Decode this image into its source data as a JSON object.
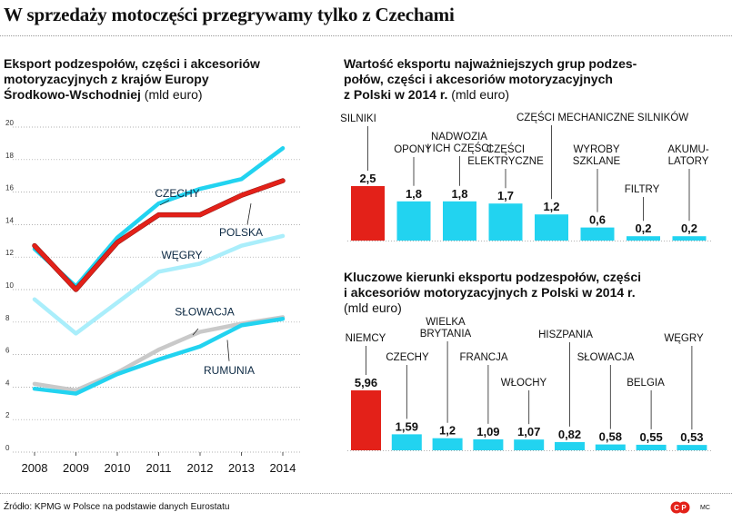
{
  "title": "W sprzedaży motoczęści przegrywamy tylko z Czechami",
  "source": "Źródło: KPMG w Polsce na podstawie danych Eurostatu",
  "credit": "MC",
  "logo_text": "CP",
  "colors": {
    "red": "#e32119",
    "cyan": "#22d3f0",
    "light_cyan": "#aaeefb",
    "gray": "#c9c9c9",
    "navy": "#0d2a44",
    "grid": "#999999"
  },
  "chart_data": [
    {
      "id": "line_chart",
      "type": "line",
      "title": "Eksport podzespołów, części i akcesoriów motoryzacyjnych z krajów Europy Środkowo-Wschodniej",
      "title_lines": [
        "Eksport podzespołów, części i akcesoriów",
        "motoryzacyjnych z krajów Europy",
        "Środkowo-Wschodniej"
      ],
      "unit": "(mld euro)",
      "x": [
        2008,
        2009,
        2010,
        2011,
        2012,
        2013,
        2014
      ],
      "ylim": [
        0,
        20
      ],
      "yticks": [
        0,
        2,
        4,
        6,
        8,
        10,
        12,
        14,
        16,
        18,
        20
      ],
      "series": [
        {
          "name": "CZECHY",
          "color": "#22d3f0",
          "values": [
            12.5,
            10.2,
            13.2,
            15.3,
            16.2,
            16.8,
            18.7
          ]
        },
        {
          "name": "POLSKA",
          "color": "#e32119",
          "values": [
            12.7,
            10.0,
            12.9,
            14.6,
            14.6,
            15.8,
            16.7
          ]
        },
        {
          "name": "WĘGRY",
          "color": "#aaeefb",
          "values": [
            9.4,
            7.3,
            9.2,
            11.1,
            11.6,
            12.7,
            13.3
          ]
        },
        {
          "name": "SŁOWACJA",
          "color": "#c9c9c9",
          "values": [
            4.2,
            3.8,
            4.9,
            6.3,
            7.4,
            7.9,
            8.3
          ]
        },
        {
          "name": "RUMUNIA",
          "color": "#22d3f0",
          "values": [
            3.9,
            3.6,
            4.8,
            5.7,
            6.5,
            7.8,
            8.2
          ]
        }
      ]
    },
    {
      "id": "bar_top",
      "type": "bar",
      "title": "Wartość eksportu najważniejszych grup podzespołów, części i akcesoriów motoryzacyjnych z Polski w 2014 r.",
      "title_lines": [
        "Wartość eksportu najważniejszych grup podzes-",
        "połów, części i akcesoriów motoryzacyjnych",
        "z Polski w 2014 r."
      ],
      "unit": "(mld euro)",
      "ylim": [
        0,
        2.5
      ],
      "categories": [
        {
          "lines": [
            "SILNIKI"
          ]
        },
        {
          "lines": [
            "OPONY"
          ]
        },
        {
          "lines": [
            "NADWOZIA",
            "I ICH CZĘŚCI"
          ]
        },
        {
          "lines": [
            "CZĘŚCI",
            "ELEKTRYCZNE"
          ]
        },
        {
          "lines": [
            "CZĘŚCI MECHANICZNE SILNIKÓW"
          ]
        },
        {
          "lines": [
            "WYROBY",
            "SZKLANE"
          ]
        },
        {
          "lines": [
            "FILTRY"
          ]
        },
        {
          "lines": [
            "AKUMU-",
            "LATORY"
          ]
        }
      ],
      "values": [
        2.5,
        1.8,
        1.8,
        1.7,
        1.2,
        0.6,
        0.2,
        0.2
      ],
      "value_labels": [
        "2,5",
        "1,8",
        "1,8",
        "1,7",
        "1,2",
        "0,6",
        "0,2",
        "0,2"
      ]
    },
    {
      "id": "bar_bottom",
      "type": "bar",
      "title": "Kluczowe kierunki eksportu podzespołów, części i akcesoriów motoryzacyjnych z Polski w 2014 r.",
      "title_lines": [
        "Kluczowe kierunki eksportu podzespołów, części",
        "i akcesoriów motoryzacyjnych z Polski w 2014 r."
      ],
      "unit": "(mld euro)",
      "ylim": [
        0,
        5.96
      ],
      "categories": [
        {
          "lines": [
            "NIEMCY"
          ]
        },
        {
          "lines": [
            "CZECHY"
          ]
        },
        {
          "lines": [
            "WIELKA",
            "BRYTANIA"
          ]
        },
        {
          "lines": [
            "FRANCJA"
          ]
        },
        {
          "lines": [
            "WŁOCHY"
          ]
        },
        {
          "lines": [
            "HISZPANIA"
          ]
        },
        {
          "lines": [
            "SŁOWACJA"
          ]
        },
        {
          "lines": [
            "BELGIA"
          ]
        },
        {
          "lines": [
            "WĘGRY"
          ]
        }
      ],
      "values": [
        5.96,
        1.59,
        1.2,
        1.09,
        1.07,
        0.82,
        0.58,
        0.55,
        0.53
      ],
      "value_labels": [
        "5,96",
        "1,59",
        "1,2",
        "1,09",
        "1,07",
        "0,82",
        "0,58",
        "0,55",
        "0,53"
      ]
    }
  ]
}
